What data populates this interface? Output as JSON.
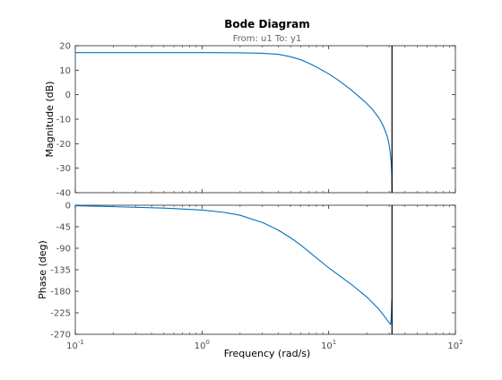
{
  "chart_data": {
    "type": "line",
    "title": "Bode Diagram",
    "subtitle": "From: u1  To: y1",
    "xlabel": "Frequency  (rad/s)",
    "x_scale": "log",
    "xlim": [
      0.1,
      100
    ],
    "x_ticks": [
      0.1,
      1,
      10,
      100
    ],
    "x_tick_labels": [
      {
        "base": "10",
        "exp": "-1"
      },
      {
        "base": "10",
        "exp": "0"
      },
      {
        "base": "10",
        "exp": "1"
      },
      {
        "base": "10",
        "exp": "2"
      }
    ],
    "vertical_line_x": 31.6,
    "line_color": "#0072BD",
    "axes_color": "#262626",
    "tick_label_color": "#4d4d4d",
    "panels": [
      {
        "name": "magnitude",
        "ylabel": "Magnitude (dB)",
        "ylim": [
          -40,
          20
        ],
        "y_ticks": [
          -40,
          -30,
          -20,
          -10,
          0,
          10,
          20
        ],
        "y_tick_labels": [
          "-40",
          "-30",
          "-20",
          "-10",
          "0",
          "10",
          "20"
        ],
        "x": [
          0.1,
          0.2,
          0.5,
          1,
          2,
          3,
          4,
          5,
          6,
          7,
          8,
          10,
          12,
          15,
          18,
          20,
          22,
          25,
          27,
          29,
          30,
          30.5,
          31,
          31.3,
          31.5,
          31.6
        ],
        "values": [
          17.2,
          17.2,
          17.2,
          17.2,
          17.1,
          16.9,
          16.5,
          15.5,
          14.3,
          12.8,
          11.3,
          8.5,
          5.8,
          2.0,
          -1.5,
          -3.6,
          -5.8,
          -9.6,
          -12.8,
          -17.0,
          -20.5,
          -23.0,
          -26.5,
          -29.5,
          -33.5,
          -40.0
        ]
      },
      {
        "name": "phase",
        "ylabel": "Phase (deg)",
        "ylim": [
          -270,
          0
        ],
        "y_ticks": [
          -270,
          -225,
          -180,
          -135,
          -90,
          -45,
          0
        ],
        "y_tick_labels": [
          "-270",
          "-225",
          "-180",
          "-135",
          "-90",
          "-45",
          "0"
        ],
        "x": [
          0.1,
          0.2,
          0.5,
          1,
          1.5,
          2,
          3,
          4,
          5,
          6,
          8,
          10,
          15,
          20,
          25,
          28,
          30,
          30.8,
          31.1,
          31.3,
          31.5
        ],
        "values": [
          -1,
          -3,
          -6,
          -10,
          -15,
          -21,
          -36,
          -52,
          -68,
          -83,
          -110,
          -131,
          -165,
          -192,
          -218,
          -235,
          -246,
          -249,
          -240,
          -222,
          -197
        ]
      }
    ]
  }
}
